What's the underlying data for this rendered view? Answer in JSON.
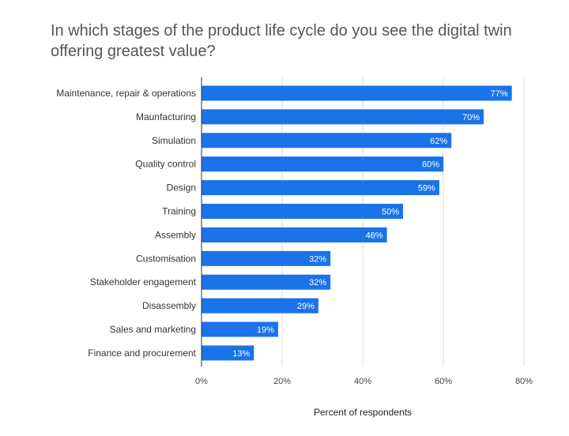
{
  "chart_data": {
    "type": "bar",
    "orientation": "horizontal",
    "title": "In which stages of the product life cycle do you see the digital twin offering greatest value?",
    "xlabel": "Percent of respondents",
    "ylabel": "",
    "xlim": [
      0,
      80
    ],
    "x_ticks": [
      "0%",
      "20%",
      "40%",
      "60%",
      "80%"
    ],
    "grid": "vertical",
    "bar_color": "#1a73e8",
    "categories": [
      "Maintenance, repair & operations",
      "Maunfacturing",
      "Simulation",
      "Quality control",
      "Design",
      "Training",
      "Assembly",
      "Customisation",
      "Stakeholder engagement",
      "Disassembly",
      "Sales and marketing",
      "Finance and procurement"
    ],
    "values": [
      77,
      70,
      62,
      60,
      59,
      50,
      46,
      32,
      32,
      29,
      19,
      13
    ],
    "data_labels": [
      "77%",
      "70%",
      "62%",
      "60%",
      "59%",
      "50%",
      "46%",
      "32%",
      "32%",
      "29%",
      "19%",
      "13%"
    ]
  }
}
